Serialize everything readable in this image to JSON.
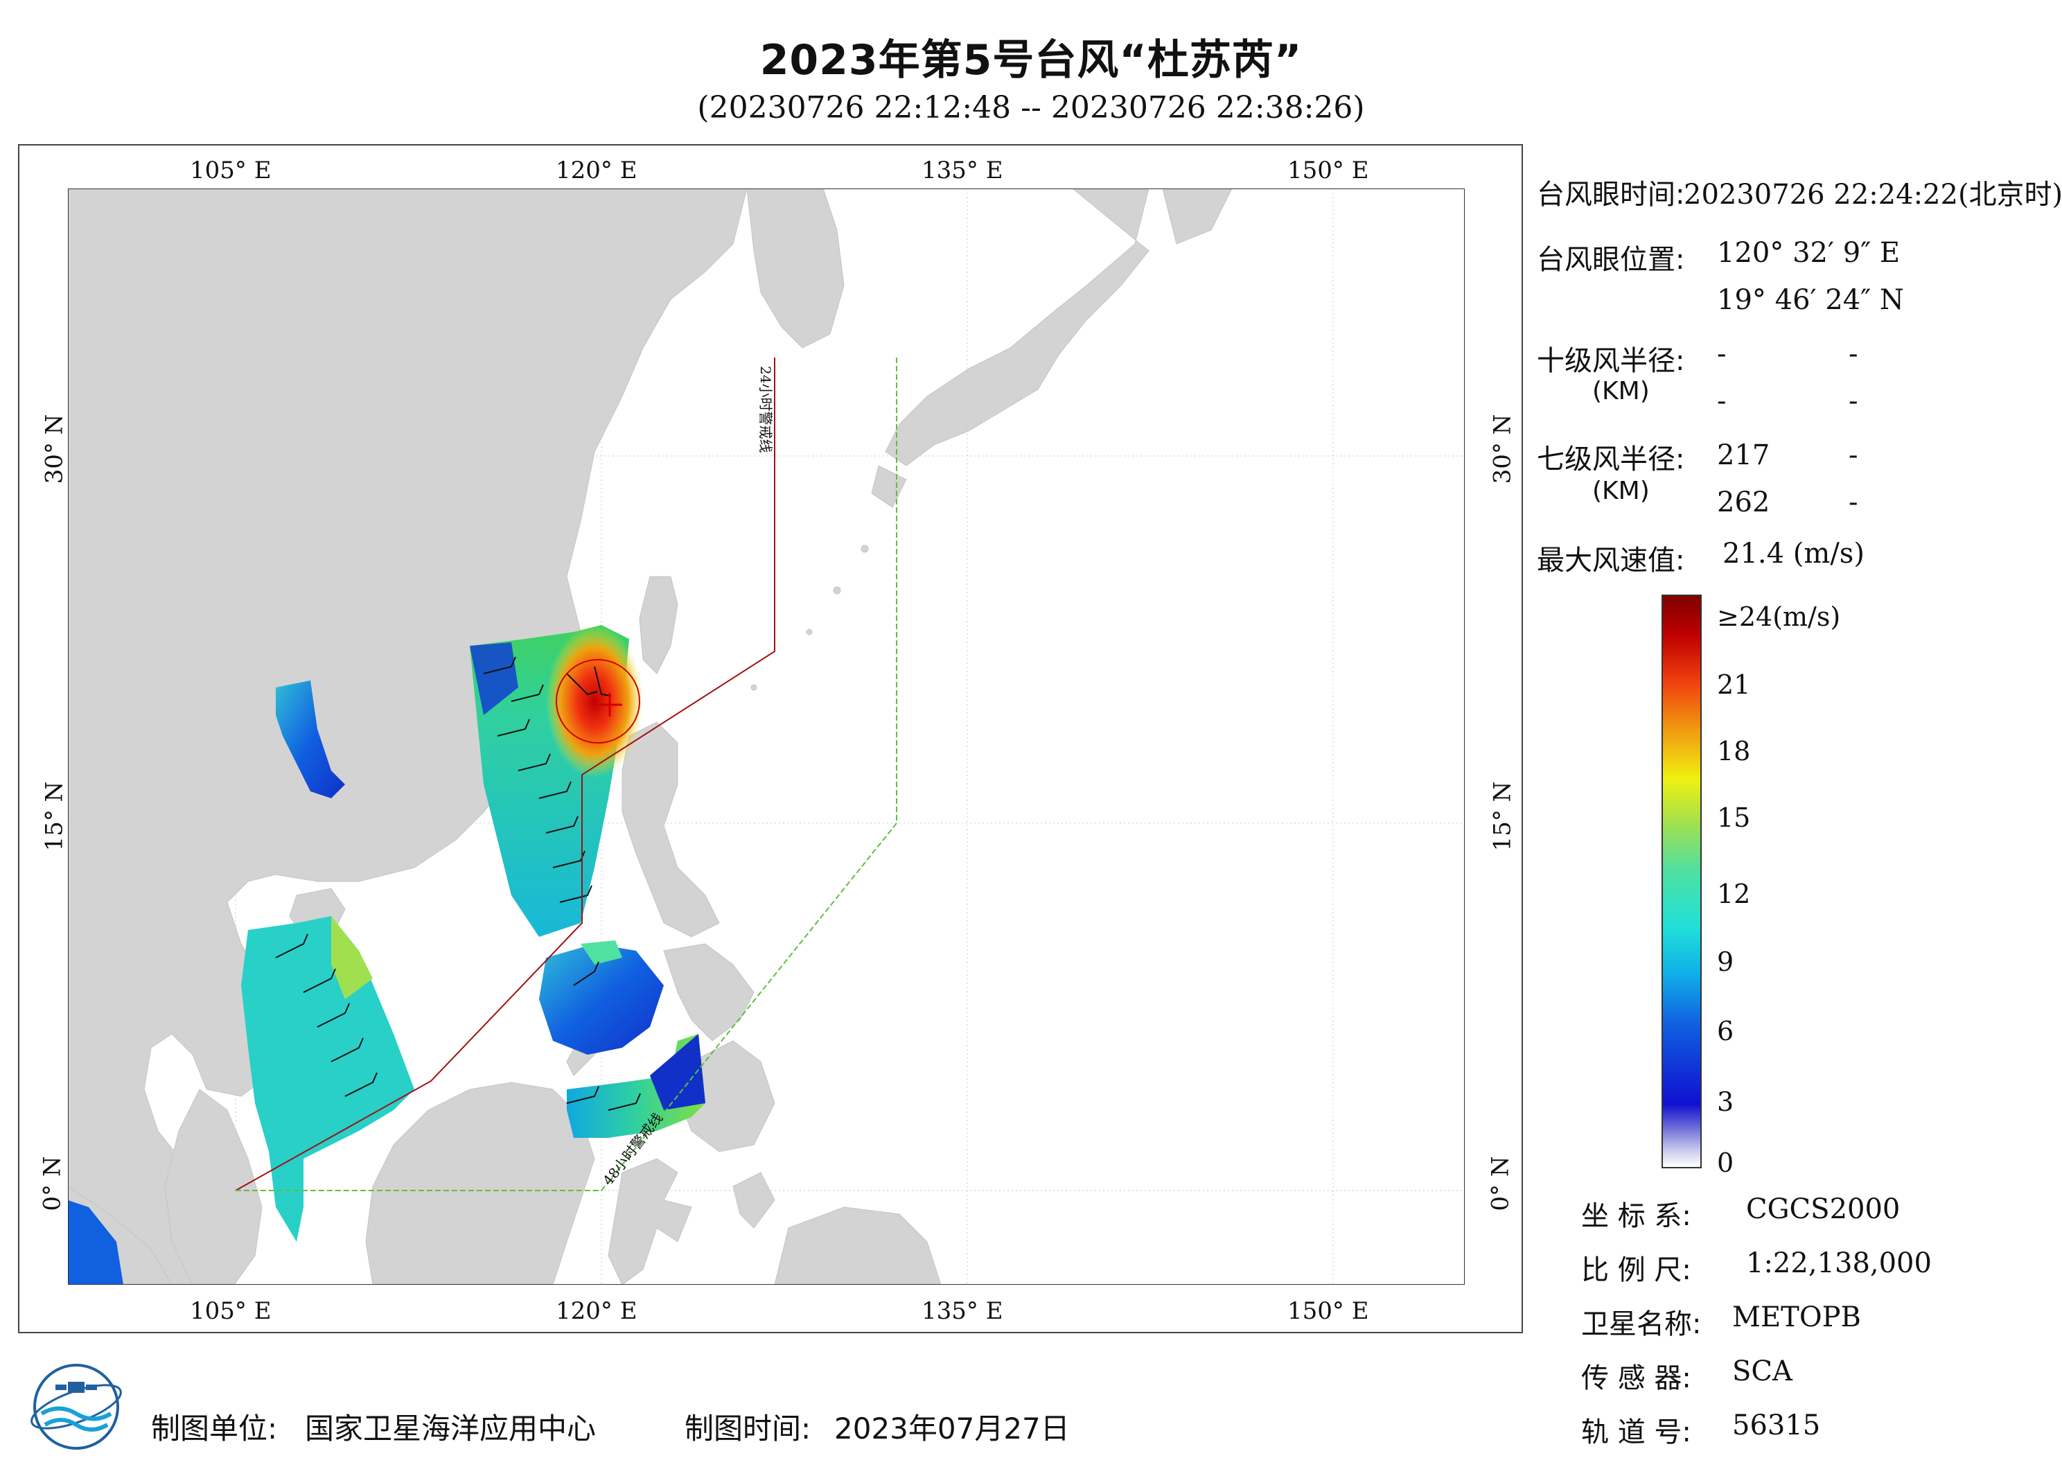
{
  "title": "2023年第5号台风“杜苏芮”",
  "subtitle": "(20230726 22:12:48 -- 20230726 22:38:26)",
  "map": {
    "lon_top_labels": [
      "105° E",
      "120° E",
      "135° E",
      "150° E"
    ],
    "lon_bottom_labels": [
      "105° E",
      "120° E",
      "135° E",
      "150° E"
    ],
    "lat_labels_left": [
      "30° N",
      "15° N",
      "0° N"
    ],
    "lat_labels_right": [
      "30° N",
      "15° N",
      "0° N"
    ],
    "warning_24h": "24小时警戒线",
    "warning_48h": "48小时警戒线",
    "colors": {
      "land": "#d3d3d3",
      "sea": "#ffffff",
      "warn24": "#a01010",
      "warn48": "#5fbf3f"
    }
  },
  "info": {
    "eye_time_label": "台风眼时间:",
    "eye_time_value": "20230726 22:24:22(北京时)",
    "eye_pos_label": "台风眼位置:",
    "eye_lon": "120° 32′ 9″ E",
    "eye_lat": "19° 46′ 24″ N",
    "r10_label": "十级风半径:",
    "r10_unit": "(KM)",
    "r10_v1": "-",
    "r10_v2": "-",
    "r10_v3": "-",
    "r10_v4": "-",
    "r7_label": "七级风半径:",
    "r7_unit": "(KM)",
    "r7_v1": "217",
    "r7_v2": "-",
    "r7_v3": "262",
    "r7_v4": "-",
    "max_wind_label": "最大风速值:",
    "max_wind_value": "21.4 (m/s)"
  },
  "colorbar": {
    "ticks": [
      "≥24(m/s)",
      "21",
      "18",
      "15",
      "12",
      "9",
      "6",
      "3",
      "0"
    ]
  },
  "meta": {
    "crs_label": "坐 标 系:",
    "crs_value": "CGCS2000",
    "scale_label": "比 例 尺:",
    "scale_value": "1:22,138,000",
    "sat_label": "卫星名称:",
    "sat_value": "METOPB",
    "sensor_label": "传 感 器:",
    "sensor_value": "SCA",
    "orbit_label": "轨 道 号:",
    "orbit_value": "56315"
  },
  "footer": {
    "org_label": "制图单位:",
    "org_value": "国家卫星海洋应用中心",
    "date_label": "制图时间:",
    "date_value": "2023年07月27日"
  }
}
